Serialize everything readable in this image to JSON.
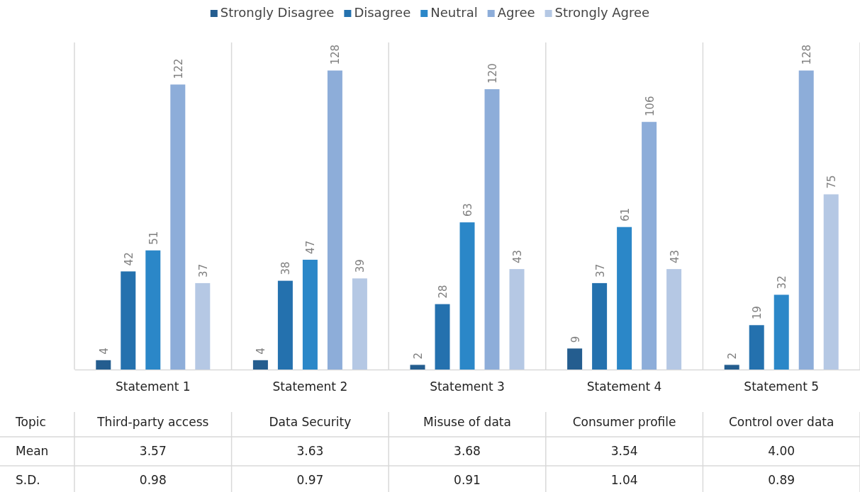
{
  "chart_data": [
    {
      "type": "bar",
      "categories": [
        "Statement 1",
        "Statement 2",
        "Statement 3",
        "Statement 4",
        "Statement 5"
      ],
      "ylim": [
        0,
        140
      ],
      "legend": "top",
      "data_labels": true,
      "series": [
        {
          "name": "Strongly Disagree",
          "color": "#245d8f",
          "values": [
            4,
            4,
            2,
            9,
            2
          ]
        },
        {
          "name": "Disagree",
          "color": "#2471ae",
          "values": [
            42,
            38,
            28,
            37,
            19
          ]
        },
        {
          "name": "Neutral",
          "color": "#2b87c8",
          "values": [
            51,
            47,
            63,
            61,
            32
          ]
        },
        {
          "name": "Agree",
          "color": "#8dadd9",
          "values": [
            122,
            128,
            120,
            106,
            128
          ]
        },
        {
          "name": "Strongly Agree",
          "color": "#b5c8e4",
          "values": [
            37,
            39,
            43,
            43,
            75
          ]
        }
      ]
    },
    {
      "type": "other",
      "xlabel": "Topic",
      "categories": [
        "Third-party access",
        "Data Security",
        "Misuse of data",
        "Consumer profile",
        "Control over data"
      ],
      "series": [
        {
          "name": "Mean",
          "values": [
            3.57,
            3.63,
            3.68,
            3.54,
            4.0
          ],
          "value_labels": [
            "3.57",
            "3.63",
            "3.68",
            "3.54",
            "4.00"
          ]
        },
        {
          "name": "S.D.",
          "values": [
            0.98,
            0.97,
            0.91,
            1.04,
            0.89
          ],
          "value_labels": [
            "0.98",
            "0.97",
            "0.91",
            "1.04",
            "0.89"
          ]
        }
      ]
    }
  ]
}
